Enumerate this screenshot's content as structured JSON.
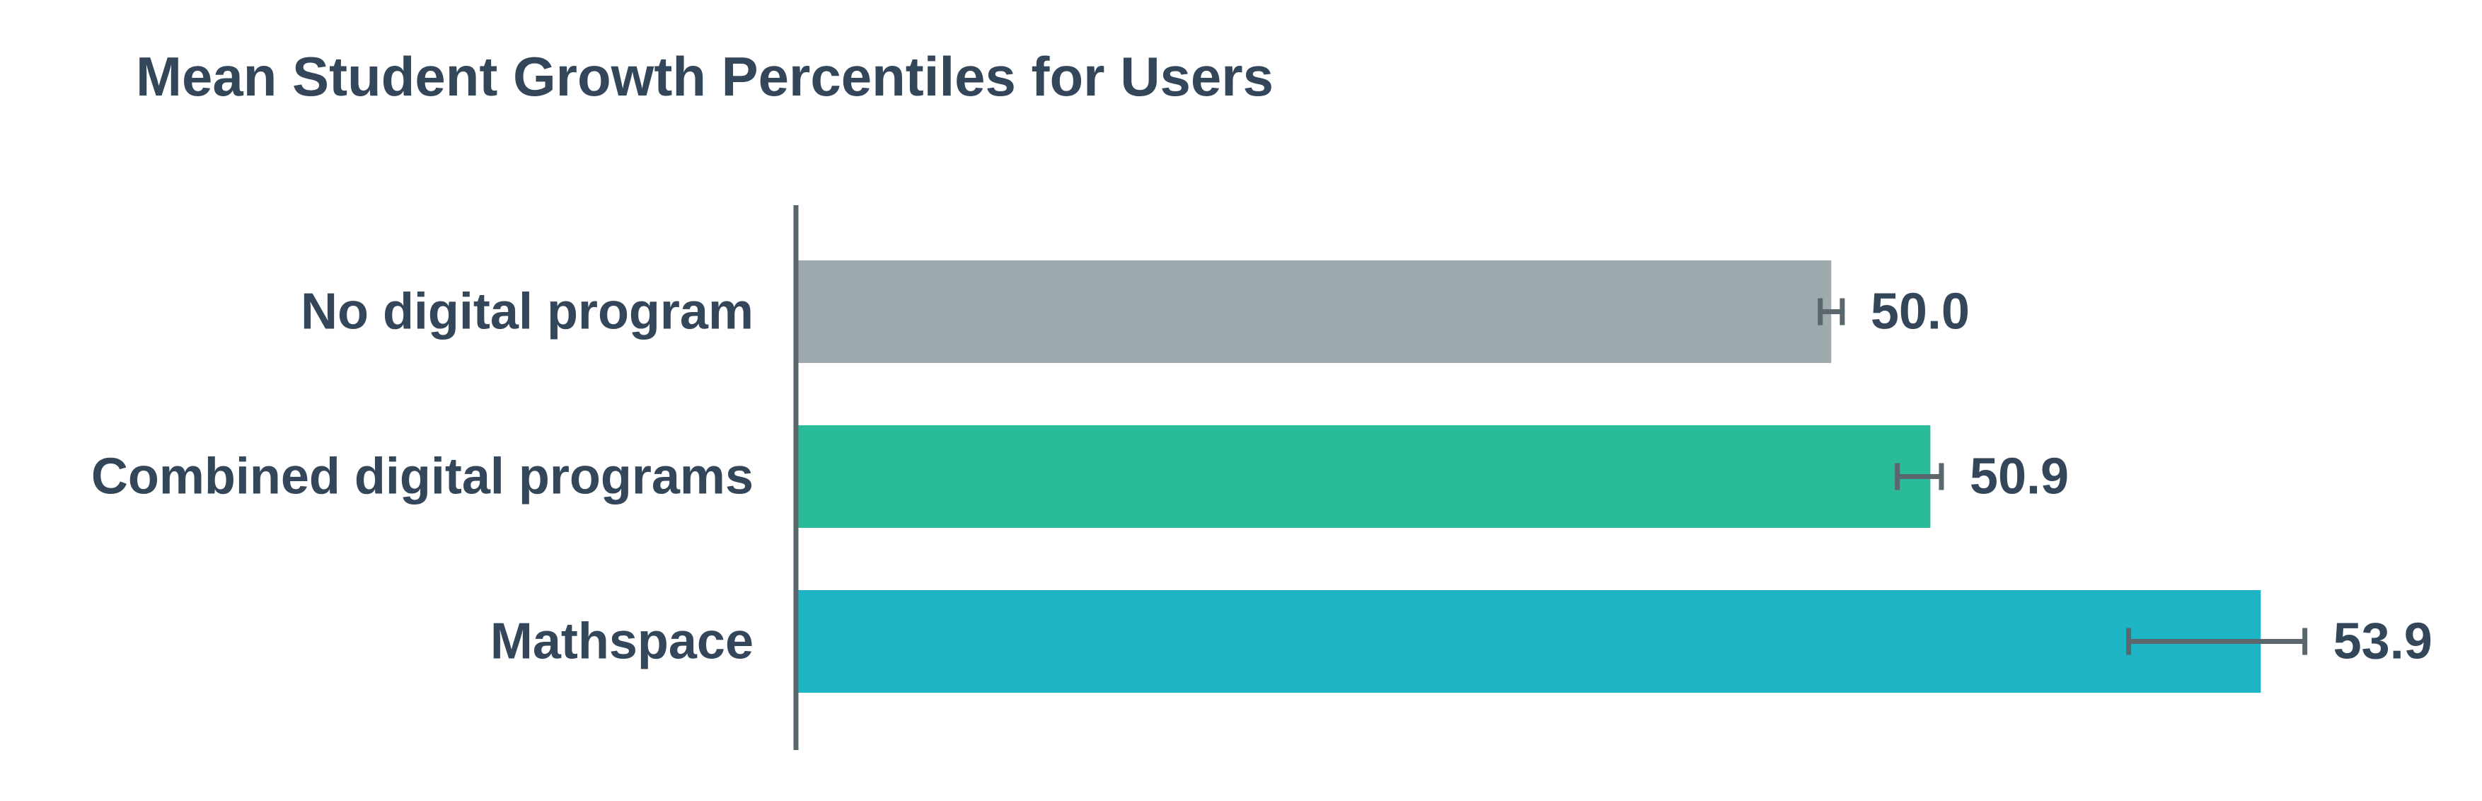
{
  "chart_data": {
    "type": "bar",
    "orientation": "horizontal",
    "title": "Mean Student Growth Percentiles for Users",
    "categories": [
      "No digital program",
      "Combined digital programs",
      "Mathspace"
    ],
    "values": [
      50.0,
      50.9,
      53.9
    ],
    "value_labels": [
      "50.0",
      "50.9",
      "53.9"
    ],
    "error_bars": [
      {
        "low": 49.9,
        "high": 50.1
      },
      {
        "low": 50.6,
        "high": 51.0
      },
      {
        "low": 52.7,
        "high": 54.3
      }
    ],
    "xlim": [
      40.6,
      55.6
    ],
    "xlabel": "",
    "ylabel": "",
    "grid": false,
    "legend": "none",
    "colors": {
      "bars": [
        "#9FAAAF",
        "#29BB9A",
        "#1DB4C6"
      ],
      "axis": "#5A676C",
      "error_bar": "#5A676C",
      "text": "#344659"
    }
  }
}
